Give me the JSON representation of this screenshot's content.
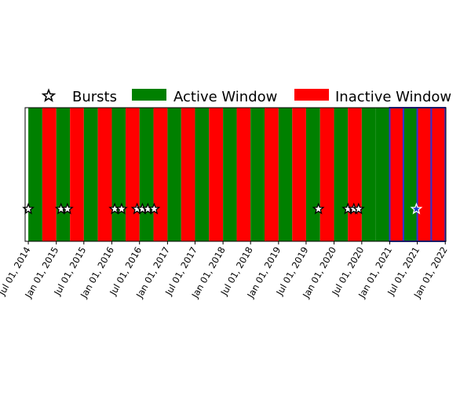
{
  "chart_data": {
    "type": "timeline",
    "title": "",
    "xlabel": "",
    "ylabel": "",
    "xlim": [
      "2014-06-10",
      "2022-01-05"
    ],
    "grid": false,
    "legend_position": "top",
    "legend": [
      {
        "name": "Bursts",
        "marker": "star-outline"
      },
      {
        "name": "Active Window",
        "color": "#008000"
      },
      {
        "name": "Inactive Window",
        "color": "#ff0000"
      }
    ],
    "tick_labels": [
      {
        "date": "2014-07-01",
        "label": "Jul 01, 2014"
      },
      {
        "date": "2015-01-01",
        "label": "Jan 01, 2015"
      },
      {
        "date": "2015-07-01",
        "label": "Jul 01, 2015"
      },
      {
        "date": "2016-01-01",
        "label": "Jan 01, 2016"
      },
      {
        "date": "2016-07-01",
        "label": "Jul 01, 2016"
      },
      {
        "date": "2017-01-01",
        "label": "Jan 01, 2017"
      },
      {
        "date": "2017-07-01",
        "label": "Jul 01, 2017"
      },
      {
        "date": "2018-01-01",
        "label": "Jan 01, 2018"
      },
      {
        "date": "2018-07-01",
        "label": "Jul 01, 2018"
      },
      {
        "date": "2019-01-01",
        "label": "Jan 01, 2019"
      },
      {
        "date": "2019-07-01",
        "label": "Jul 01, 2019"
      },
      {
        "date": "2020-01-01",
        "label": "Jan 01, 2020"
      },
      {
        "date": "2020-07-01",
        "label": "Jul 01, 2020"
      },
      {
        "date": "2021-01-01",
        "label": "Jan 01, 2021"
      },
      {
        "date": "2021-07-01",
        "label": "Jul 01, 2021"
      },
      {
        "date": "2022-01-01",
        "label": "Jan 01, 2022"
      }
    ],
    "windows": [
      {
        "start": "2014-07-01",
        "end": "2014-10-01",
        "state": "active"
      },
      {
        "start": "2014-10-01",
        "end": "2015-01-01",
        "state": "inactive"
      },
      {
        "start": "2015-01-01",
        "end": "2015-04-01",
        "state": "active"
      },
      {
        "start": "2015-04-01",
        "end": "2015-07-01",
        "state": "inactive"
      },
      {
        "start": "2015-07-01",
        "end": "2015-10-01",
        "state": "active"
      },
      {
        "start": "2015-10-01",
        "end": "2016-01-01",
        "state": "inactive"
      },
      {
        "start": "2016-01-01",
        "end": "2016-04-01",
        "state": "active"
      },
      {
        "start": "2016-04-01",
        "end": "2016-07-01",
        "state": "inactive"
      },
      {
        "start": "2016-07-01",
        "end": "2016-10-01",
        "state": "active"
      },
      {
        "start": "2016-10-01",
        "end": "2017-01-01",
        "state": "inactive"
      },
      {
        "start": "2017-01-01",
        "end": "2017-04-01",
        "state": "active"
      },
      {
        "start": "2017-04-01",
        "end": "2017-07-01",
        "state": "inactive"
      },
      {
        "start": "2017-07-01",
        "end": "2017-10-01",
        "state": "active"
      },
      {
        "start": "2017-10-01",
        "end": "2018-01-01",
        "state": "inactive"
      },
      {
        "start": "2018-01-01",
        "end": "2018-04-01",
        "state": "active"
      },
      {
        "start": "2018-04-01",
        "end": "2018-07-01",
        "state": "inactive"
      },
      {
        "start": "2018-07-01",
        "end": "2018-10-01",
        "state": "active"
      },
      {
        "start": "2018-10-01",
        "end": "2019-01-01",
        "state": "inactive"
      },
      {
        "start": "2019-01-01",
        "end": "2019-04-01",
        "state": "active"
      },
      {
        "start": "2019-04-01",
        "end": "2019-07-01",
        "state": "inactive"
      },
      {
        "start": "2019-07-01",
        "end": "2019-10-01",
        "state": "active"
      },
      {
        "start": "2019-10-01",
        "end": "2020-01-01",
        "state": "inactive"
      },
      {
        "start": "2020-01-01",
        "end": "2020-04-01",
        "state": "active"
      },
      {
        "start": "2020-04-01",
        "end": "2020-07-01",
        "state": "inactive"
      },
      {
        "start": "2020-07-01",
        "end": "2020-10-01",
        "state": "active"
      },
      {
        "start": "2020-10-01",
        "end": "2021-01-01",
        "state": "active"
      },
      {
        "start": "2021-01-01",
        "end": "2021-04-01",
        "state": "inactive",
        "outline": "#3333cc"
      },
      {
        "start": "2021-04-01",
        "end": "2021-07-01",
        "state": "active",
        "outline": "#3333cc"
      },
      {
        "start": "2021-07-01",
        "end": "2021-10-01",
        "state": "inactive",
        "outline": "#3333cc"
      },
      {
        "start": "2021-10-01",
        "end": "2022-01-01",
        "state": "inactive",
        "outline": "#3333cc"
      }
    ],
    "bursts": [
      {
        "date": "2014-07-01"
      },
      {
        "date": "2015-02-01"
      },
      {
        "date": "2015-03-15"
      },
      {
        "date": "2016-01-20"
      },
      {
        "date": "2016-03-05"
      },
      {
        "date": "2016-06-15"
      },
      {
        "date": "2016-07-20"
      },
      {
        "date": "2016-08-25"
      },
      {
        "date": "2016-10-05"
      },
      {
        "date": "2019-09-20"
      },
      {
        "date": "2020-04-01"
      },
      {
        "date": "2020-05-10"
      },
      {
        "date": "2020-06-10"
      },
      {
        "date": "2021-06-25",
        "color": "#1a3cc8"
      }
    ],
    "colors": {
      "active": "#008000",
      "inactive": "#ff0000",
      "highlight_outline": "#3333cc",
      "burst_fill": "#ffffff",
      "burst_edge": "#000000"
    }
  }
}
